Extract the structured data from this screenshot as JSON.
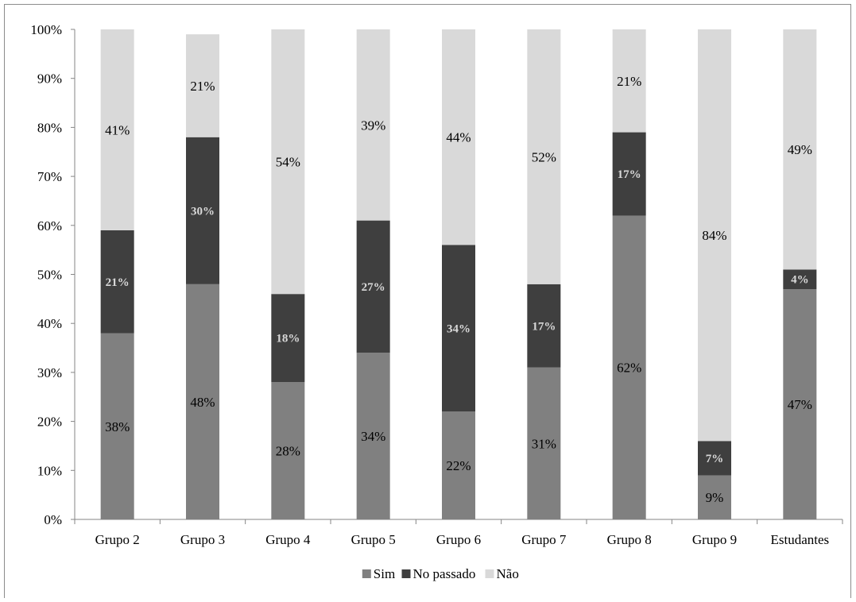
{
  "chart_data": {
    "type": "bar",
    "stacked": "percent",
    "categories": [
      "Grupo 2",
      "Grupo 3",
      "Grupo 4",
      "Grupo 5",
      "Grupo 6",
      "Grupo 7",
      "Grupo 8",
      "Grupo 9",
      "Estudantes"
    ],
    "series": [
      {
        "name": "Sim",
        "color": "#808080",
        "values": [
          38,
          48,
          28,
          34,
          22,
          31,
          62,
          9,
          47
        ],
        "labels": [
          "38%",
          "48%",
          "28%",
          "34%",
          "22%",
          "31%",
          "62%",
          "9%",
          "47%"
        ]
      },
      {
        "name": "No passado",
        "color": "#3f3f3f",
        "values": [
          21,
          30,
          18,
          27,
          34,
          17,
          17,
          7,
          4
        ],
        "labels": [
          "21%",
          "30%",
          "18%",
          "27%",
          "34%",
          "17%",
          "17%",
          "7%",
          "4%"
        ]
      },
      {
        "name": "Não",
        "color": "#d9d9d9",
        "values": [
          41,
          21,
          54,
          39,
          44,
          52,
          21,
          84,
          49
        ],
        "labels": [
          "41%",
          "21%",
          "54%",
          "39%",
          "44%",
          "52%",
          "21%",
          "84%",
          "49%"
        ]
      }
    ],
    "ylim": [
      0,
      100
    ],
    "yticks": [
      "0%",
      "10%",
      "20%",
      "30%",
      "40%",
      "50%",
      "60%",
      "70%",
      "80%",
      "90%",
      "100%"
    ],
    "grid": false,
    "legend_position": "bottom",
    "title": "",
    "xlabel": "",
    "ylabel": ""
  }
}
